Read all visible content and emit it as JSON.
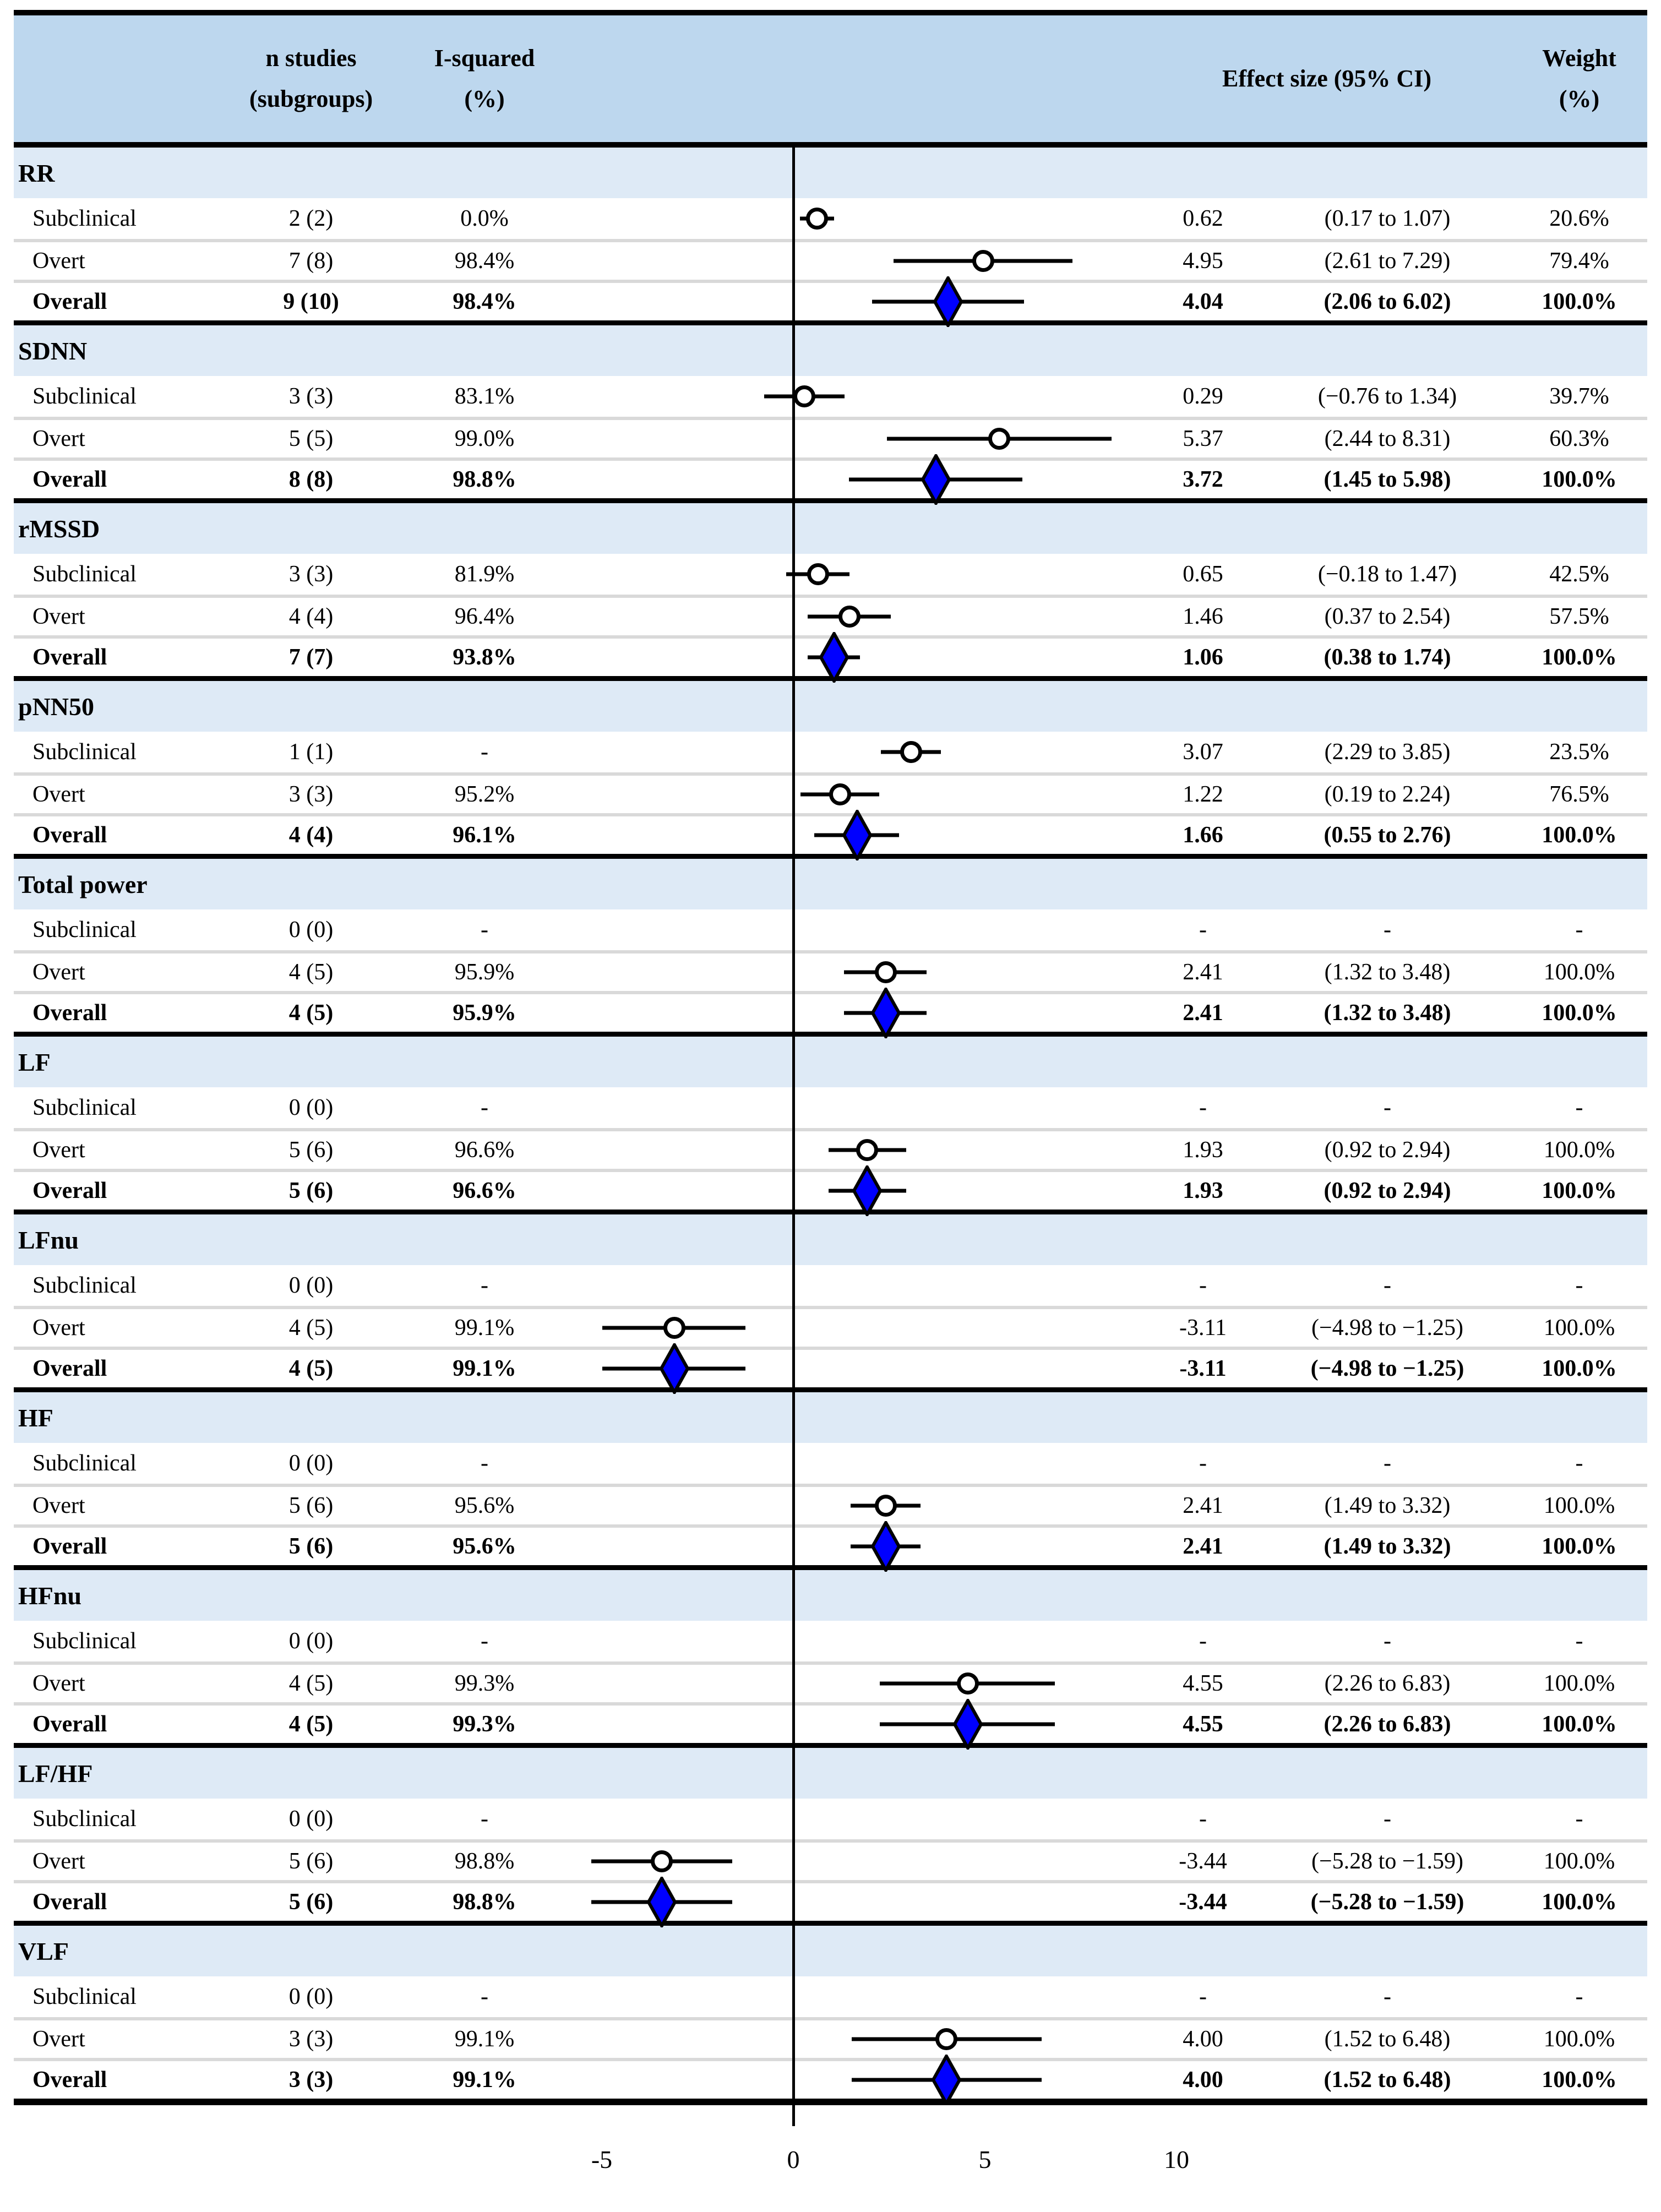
{
  "header": {
    "n_line1": "n studies",
    "n_line2": "(subgroups)",
    "i2_line1": "I-squared",
    "i2_line2": "(%)",
    "effect": "Effect size (95% CI)",
    "weight_line1": "Weight",
    "weight_line2": "(%)"
  },
  "colors": {
    "header_bg": "#bdd7ee",
    "group_band_bg": "#deeaf6",
    "row_separator": "#d9d9d9",
    "diamond_fill": "#0000ff",
    "circle_fill": "#ffffff",
    "marker_stroke": "#000000"
  },
  "chart_data": {
    "type": "forest",
    "x_axis": {
      "ticks": [
        {
          "value": -5,
          "label": "-5"
        },
        {
          "value": 0,
          "label": "0"
        },
        {
          "value": 5,
          "label": "5"
        },
        {
          "value": 10,
          "label": "10"
        }
      ],
      "zero_line_at": 0
    },
    "groups": [
      {
        "name": "RR",
        "rows": [
          {
            "label": "Subclinical",
            "n": "2 (2)",
            "i2": "0.0%",
            "es": 0.62,
            "lo": 0.17,
            "hi": 1.07,
            "es_text": "0.62",
            "ci_text": "(0.17 to 1.07)",
            "weight": "20.6%",
            "marker": "circle"
          },
          {
            "label": "Overt",
            "n": "7 (8)",
            "i2": "98.4%",
            "es": 4.95,
            "lo": 2.61,
            "hi": 7.29,
            "es_text": "4.95",
            "ci_text": "(2.61 to 7.29)",
            "weight": "79.4%",
            "marker": "circle"
          },
          {
            "label": "Overall",
            "n": "9 (10)",
            "i2": "98.4%",
            "es": 4.04,
            "lo": 2.06,
            "hi": 6.02,
            "es_text": "4.04",
            "ci_text": "(2.06 to 6.02)",
            "weight": "100.0%",
            "marker": "diamond"
          }
        ]
      },
      {
        "name": "SDNN",
        "rows": [
          {
            "label": "Subclinical",
            "n": "3 (3)",
            "i2": "83.1%",
            "es": 0.29,
            "lo": -0.76,
            "hi": 1.34,
            "es_text": "0.29",
            "ci_text": "(−0.76 to 1.34)",
            "weight": "39.7%",
            "marker": "circle"
          },
          {
            "label": "Overt",
            "n": "5 (5)",
            "i2": "99.0%",
            "es": 5.37,
            "lo": 2.44,
            "hi": 8.31,
            "es_text": "5.37",
            "ci_text": "(2.44 to 8.31)",
            "weight": "60.3%",
            "marker": "circle"
          },
          {
            "label": "Overall",
            "n": "8 (8)",
            "i2": "98.8%",
            "es": 3.72,
            "lo": 1.45,
            "hi": 5.98,
            "es_text": "3.72",
            "ci_text": "(1.45 to 5.98)",
            "weight": "100.0%",
            "marker": "diamond"
          }
        ]
      },
      {
        "name": "rMSSD",
        "rows": [
          {
            "label": "Subclinical",
            "n": "3 (3)",
            "i2": "81.9%",
            "es": 0.65,
            "lo": -0.18,
            "hi": 1.47,
            "es_text": "0.65",
            "ci_text": "(−0.18 to 1.47)",
            "weight": "42.5%",
            "marker": "circle"
          },
          {
            "label": "Overt",
            "n": "4 (4)",
            "i2": "96.4%",
            "es": 1.46,
            "lo": 0.37,
            "hi": 2.54,
            "es_text": "1.46",
            "ci_text": "(0.37 to 2.54)",
            "weight": "57.5%",
            "marker": "circle"
          },
          {
            "label": "Overall",
            "n": "7 (7)",
            "i2": "93.8%",
            "es": 1.06,
            "lo": 0.38,
            "hi": 1.74,
            "es_text": "1.06",
            "ci_text": "(0.38 to 1.74)",
            "weight": "100.0%",
            "marker": "diamond"
          }
        ]
      },
      {
        "name": "pNN50",
        "rows": [
          {
            "label": "Subclinical",
            "n": "1 (1)",
            "i2": "-",
            "es": 3.07,
            "lo": 2.29,
            "hi": 3.85,
            "es_text": "3.07",
            "ci_text": "(2.29 to 3.85)",
            "weight": "23.5%",
            "marker": "circle"
          },
          {
            "label": "Overt",
            "n": "3 (3)",
            "i2": "95.2%",
            "es": 1.22,
            "lo": 0.19,
            "hi": 2.24,
            "es_text": "1.22",
            "ci_text": "(0.19 to 2.24)",
            "weight": "76.5%",
            "marker": "circle"
          },
          {
            "label": "Overall",
            "n": "4 (4)",
            "i2": "96.1%",
            "es": 1.66,
            "lo": 0.55,
            "hi": 2.76,
            "es_text": "1.66",
            "ci_text": "(0.55 to 2.76)",
            "weight": "100.0%",
            "marker": "diamond"
          }
        ]
      },
      {
        "name": "Total power",
        "rows": [
          {
            "label": "Subclinical",
            "n": "0 (0)",
            "i2": "-",
            "es": null,
            "lo": null,
            "hi": null,
            "es_text": "-",
            "ci_text": "-",
            "weight": "-",
            "marker": "none"
          },
          {
            "label": "Overt",
            "n": "4 (5)",
            "i2": "95.9%",
            "es": 2.41,
            "lo": 1.32,
            "hi": 3.48,
            "es_text": "2.41",
            "ci_text": "(1.32 to 3.48)",
            "weight": "100.0%",
            "marker": "circle"
          },
          {
            "label": "Overall",
            "n": "4 (5)",
            "i2": "95.9%",
            "es": 2.41,
            "lo": 1.32,
            "hi": 3.48,
            "es_text": "2.41",
            "ci_text": "(1.32 to 3.48)",
            "weight": "100.0%",
            "marker": "diamond"
          }
        ]
      },
      {
        "name": "LF",
        "rows": [
          {
            "label": "Subclinical",
            "n": "0 (0)",
            "i2": "-",
            "es": null,
            "lo": null,
            "hi": null,
            "es_text": "-",
            "ci_text": "-",
            "weight": "-",
            "marker": "none"
          },
          {
            "label": "Overt",
            "n": "5 (6)",
            "i2": "96.6%",
            "es": 1.93,
            "lo": 0.92,
            "hi": 2.94,
            "es_text": "1.93",
            "ci_text": "(0.92 to 2.94)",
            "weight": "100.0%",
            "marker": "circle"
          },
          {
            "label": "Overall",
            "n": "5 (6)",
            "i2": "96.6%",
            "es": 1.93,
            "lo": 0.92,
            "hi": 2.94,
            "es_text": "1.93",
            "ci_text": "(0.92 to 2.94)",
            "weight": "100.0%",
            "marker": "diamond"
          }
        ]
      },
      {
        "name": "LFnu",
        "rows": [
          {
            "label": "Subclinical",
            "n": "0 (0)",
            "i2": "-",
            "es": null,
            "lo": null,
            "hi": null,
            "es_text": "-",
            "ci_text": "-",
            "weight": "-",
            "marker": "none"
          },
          {
            "label": "Overt",
            "n": "4 (5)",
            "i2": "99.1%",
            "es": -3.11,
            "lo": -4.98,
            "hi": -1.25,
            "es_text": "-3.11",
            "ci_text": "(−4.98 to −1.25)",
            "weight": "100.0%",
            "marker": "circle"
          },
          {
            "label": "Overall",
            "n": "4 (5)",
            "i2": "99.1%",
            "es": -3.11,
            "lo": -4.98,
            "hi": -1.25,
            "es_text": "-3.11",
            "ci_text": "(−4.98 to −1.25)",
            "weight": "100.0%",
            "marker": "diamond"
          }
        ]
      },
      {
        "name": "HF",
        "rows": [
          {
            "label": "Subclinical",
            "n": "0 (0)",
            "i2": "-",
            "es": null,
            "lo": null,
            "hi": null,
            "es_text": "-",
            "ci_text": "-",
            "weight": "-",
            "marker": "none"
          },
          {
            "label": "Overt",
            "n": "5 (6)",
            "i2": "95.6%",
            "es": 2.41,
            "lo": 1.49,
            "hi": 3.32,
            "es_text": "2.41",
            "ci_text": "(1.49 to 3.32)",
            "weight": "100.0%",
            "marker": "circle"
          },
          {
            "label": "Overall",
            "n": "5 (6)",
            "i2": "95.6%",
            "es": 2.41,
            "lo": 1.49,
            "hi": 3.32,
            "es_text": "2.41",
            "ci_text": "(1.49 to 3.32)",
            "weight": "100.0%",
            "marker": "diamond"
          }
        ]
      },
      {
        "name": "HFnu",
        "rows": [
          {
            "label": "Subclinical",
            "n": "0 (0)",
            "i2": "-",
            "es": null,
            "lo": null,
            "hi": null,
            "es_text": "-",
            "ci_text": "-",
            "weight": "-",
            "marker": "none"
          },
          {
            "label": "Overt",
            "n": "4 (5)",
            "i2": "99.3%",
            "es": 4.55,
            "lo": 2.26,
            "hi": 6.83,
            "es_text": "4.55",
            "ci_text": "(2.26 to 6.83)",
            "weight": "100.0%",
            "marker": "circle"
          },
          {
            "label": "Overall",
            "n": "4 (5)",
            "i2": "99.3%",
            "es": 4.55,
            "lo": 2.26,
            "hi": 6.83,
            "es_text": "4.55",
            "ci_text": "(2.26 to 6.83)",
            "weight": "100.0%",
            "marker": "diamond"
          }
        ]
      },
      {
        "name": "LF/HF",
        "rows": [
          {
            "label": "Subclinical",
            "n": "0 (0)",
            "i2": "-",
            "es": null,
            "lo": null,
            "hi": null,
            "es_text": "-",
            "ci_text": "-",
            "weight": "-",
            "marker": "none"
          },
          {
            "label": "Overt",
            "n": "5 (6)",
            "i2": "98.8%",
            "es": -3.44,
            "lo": -5.28,
            "hi": -1.59,
            "es_text": "-3.44",
            "ci_text": "(−5.28 to −1.59)",
            "weight": "100.0%",
            "marker": "circle"
          },
          {
            "label": "Overall",
            "n": "5 (6)",
            "i2": "98.8%",
            "es": -3.44,
            "lo": -5.28,
            "hi": -1.59,
            "es_text": "-3.44",
            "ci_text": "(−5.28 to −1.59)",
            "weight": "100.0%",
            "marker": "diamond"
          }
        ]
      },
      {
        "name": "VLF",
        "rows": [
          {
            "label": "Subclinical",
            "n": "0 (0)",
            "i2": "-",
            "es": null,
            "lo": null,
            "hi": null,
            "es_text": "-",
            "ci_text": "-",
            "weight": "-",
            "marker": "none"
          },
          {
            "label": "Overt",
            "n": "3 (3)",
            "i2": "99.1%",
            "es": 4.0,
            "lo": 1.52,
            "hi": 6.48,
            "es_text": "4.00",
            "ci_text": "(1.52 to 6.48)",
            "weight": "100.0%",
            "marker": "circle"
          },
          {
            "label": "Overall",
            "n": "3 (3)",
            "i2": "99.1%",
            "es": 4.0,
            "lo": 1.52,
            "hi": 6.48,
            "es_text": "4.00",
            "ci_text": "(1.52 to 6.48)",
            "weight": "100.0%",
            "marker": "diamond"
          }
        ]
      }
    ]
  }
}
